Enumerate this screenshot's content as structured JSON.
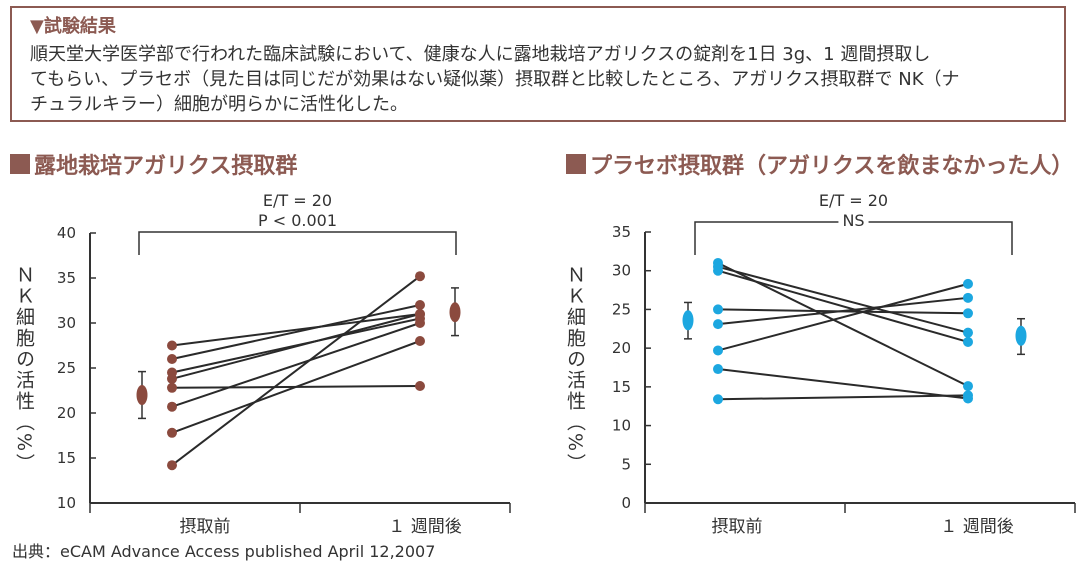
{
  "results": {
    "heading": "▼試験結果",
    "line1": "順天堂大学医学部で行われた臨床試験において、健康な人に露地栽培アガリクスの錠剤を1日 3g、1 週間摂取し",
    "line2": "てもらい、プラセボ（見た目は同じだが効果はない疑似薬）摂取群と比較したところ、アガリクス摂取群で NK（ナ",
    "line3": "チュラルキラー）細胞が明らかに活性化した。"
  },
  "source": "出典：eCAM Advance Access published April 12,2007",
  "colors": {
    "accent": "#8c5a52",
    "agaricus_points": "#8b4a3e",
    "placebo_points": "#1ca7e0",
    "lines": "#2a2a2a"
  },
  "chart_data": [
    {
      "type": "line",
      "title": "露地栽培アガリクス摂取群",
      "ylabel": "ＮＫ細胞の活性（%）",
      "categories": [
        "摂取前",
        "１ 週間後"
      ],
      "ylim": [
        10,
        40
      ],
      "yticks": [
        10,
        15,
        20,
        25,
        30,
        35,
        40
      ],
      "annotation_ratio": "E/T = 20",
      "annotation_sig": "P < 0.001",
      "point_color": "#8b4a3e",
      "series": [
        {
          "values": [
            27.5,
            31
          ]
        },
        {
          "values": [
            26,
            32
          ]
        },
        {
          "values": [
            24.5,
            30.5
          ]
        },
        {
          "values": [
            23.8,
            31
          ]
        },
        {
          "values": [
            22.8,
            23
          ]
        },
        {
          "values": [
            20.7,
            30
          ]
        },
        {
          "values": [
            17.8,
            28
          ]
        },
        {
          "values": [
            14.2,
            35.2
          ]
        }
      ],
      "summary": [
        {
          "mean": 22,
          "lower": 19.4,
          "upper": 24.6
        },
        {
          "mean": 31.2,
          "lower": 28.6,
          "upper": 33.9
        }
      ]
    },
    {
      "type": "line",
      "title": "プラセボ摂取群（アガリクスを飲まなかった人）",
      "ylabel": "ＮＫ細胞の活性（%）",
      "categories": [
        "摂取前",
        "１ 週間後"
      ],
      "ylim": [
        0,
        35
      ],
      "yticks": [
        0,
        5,
        10,
        15,
        20,
        25,
        30,
        35
      ],
      "annotation_ratio": "E/T = 20",
      "annotation_sig": "NS",
      "point_color": "#1ca7e0",
      "series": [
        {
          "values": [
            31,
            15.1
          ]
        },
        {
          "values": [
            30.5,
            22
          ]
        },
        {
          "values": [
            30,
            20.8
          ]
        },
        {
          "values": [
            25,
            24.5
          ]
        },
        {
          "values": [
            23.1,
            26.5
          ]
        },
        {
          "values": [
            19.7,
            28.3
          ]
        },
        {
          "values": [
            17.3,
            13.5
          ]
        },
        {
          "values": [
            13.4,
            13.9
          ]
        }
      ],
      "summary": [
        {
          "mean": 23.6,
          "lower": 21.2,
          "upper": 25.9
        },
        {
          "mean": 21.6,
          "lower": 19.2,
          "upper": 23.8
        }
      ]
    }
  ]
}
